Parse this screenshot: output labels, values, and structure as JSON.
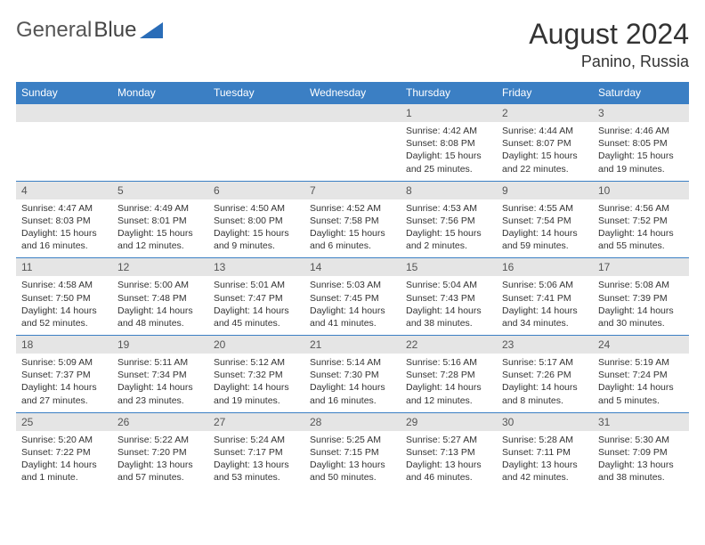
{
  "brand": {
    "name1": "General",
    "name2": "Blue"
  },
  "title": {
    "month_year": "August 2024",
    "location": "Panino, Russia"
  },
  "colors": {
    "header_bg": "#3b7fc4",
    "header_text": "#ffffff",
    "daynum_bg": "#e5e5e5",
    "rule": "#3b7fc4",
    "text": "#333333",
    "logo_accent": "#2a6db8"
  },
  "weekdays": [
    "Sunday",
    "Monday",
    "Tuesday",
    "Wednesday",
    "Thursday",
    "Friday",
    "Saturday"
  ],
  "weeks": [
    [
      null,
      null,
      null,
      null,
      {
        "n": "1",
        "sr": "Sunrise: 4:42 AM",
        "ss": "Sunset: 8:08 PM",
        "dl": "Daylight: 15 hours and 25 minutes."
      },
      {
        "n": "2",
        "sr": "Sunrise: 4:44 AM",
        "ss": "Sunset: 8:07 PM",
        "dl": "Daylight: 15 hours and 22 minutes."
      },
      {
        "n": "3",
        "sr": "Sunrise: 4:46 AM",
        "ss": "Sunset: 8:05 PM",
        "dl": "Daylight: 15 hours and 19 minutes."
      }
    ],
    [
      {
        "n": "4",
        "sr": "Sunrise: 4:47 AM",
        "ss": "Sunset: 8:03 PM",
        "dl": "Daylight: 15 hours and 16 minutes."
      },
      {
        "n": "5",
        "sr": "Sunrise: 4:49 AM",
        "ss": "Sunset: 8:01 PM",
        "dl": "Daylight: 15 hours and 12 minutes."
      },
      {
        "n": "6",
        "sr": "Sunrise: 4:50 AM",
        "ss": "Sunset: 8:00 PM",
        "dl": "Daylight: 15 hours and 9 minutes."
      },
      {
        "n": "7",
        "sr": "Sunrise: 4:52 AM",
        "ss": "Sunset: 7:58 PM",
        "dl": "Daylight: 15 hours and 6 minutes."
      },
      {
        "n": "8",
        "sr": "Sunrise: 4:53 AM",
        "ss": "Sunset: 7:56 PM",
        "dl": "Daylight: 15 hours and 2 minutes."
      },
      {
        "n": "9",
        "sr": "Sunrise: 4:55 AM",
        "ss": "Sunset: 7:54 PM",
        "dl": "Daylight: 14 hours and 59 minutes."
      },
      {
        "n": "10",
        "sr": "Sunrise: 4:56 AM",
        "ss": "Sunset: 7:52 PM",
        "dl": "Daylight: 14 hours and 55 minutes."
      }
    ],
    [
      {
        "n": "11",
        "sr": "Sunrise: 4:58 AM",
        "ss": "Sunset: 7:50 PM",
        "dl": "Daylight: 14 hours and 52 minutes."
      },
      {
        "n": "12",
        "sr": "Sunrise: 5:00 AM",
        "ss": "Sunset: 7:48 PM",
        "dl": "Daylight: 14 hours and 48 minutes."
      },
      {
        "n": "13",
        "sr": "Sunrise: 5:01 AM",
        "ss": "Sunset: 7:47 PM",
        "dl": "Daylight: 14 hours and 45 minutes."
      },
      {
        "n": "14",
        "sr": "Sunrise: 5:03 AM",
        "ss": "Sunset: 7:45 PM",
        "dl": "Daylight: 14 hours and 41 minutes."
      },
      {
        "n": "15",
        "sr": "Sunrise: 5:04 AM",
        "ss": "Sunset: 7:43 PM",
        "dl": "Daylight: 14 hours and 38 minutes."
      },
      {
        "n": "16",
        "sr": "Sunrise: 5:06 AM",
        "ss": "Sunset: 7:41 PM",
        "dl": "Daylight: 14 hours and 34 minutes."
      },
      {
        "n": "17",
        "sr": "Sunrise: 5:08 AM",
        "ss": "Sunset: 7:39 PM",
        "dl": "Daylight: 14 hours and 30 minutes."
      }
    ],
    [
      {
        "n": "18",
        "sr": "Sunrise: 5:09 AM",
        "ss": "Sunset: 7:37 PM",
        "dl": "Daylight: 14 hours and 27 minutes."
      },
      {
        "n": "19",
        "sr": "Sunrise: 5:11 AM",
        "ss": "Sunset: 7:34 PM",
        "dl": "Daylight: 14 hours and 23 minutes."
      },
      {
        "n": "20",
        "sr": "Sunrise: 5:12 AM",
        "ss": "Sunset: 7:32 PM",
        "dl": "Daylight: 14 hours and 19 minutes."
      },
      {
        "n": "21",
        "sr": "Sunrise: 5:14 AM",
        "ss": "Sunset: 7:30 PM",
        "dl": "Daylight: 14 hours and 16 minutes."
      },
      {
        "n": "22",
        "sr": "Sunrise: 5:16 AM",
        "ss": "Sunset: 7:28 PM",
        "dl": "Daylight: 14 hours and 12 minutes."
      },
      {
        "n": "23",
        "sr": "Sunrise: 5:17 AM",
        "ss": "Sunset: 7:26 PM",
        "dl": "Daylight: 14 hours and 8 minutes."
      },
      {
        "n": "24",
        "sr": "Sunrise: 5:19 AM",
        "ss": "Sunset: 7:24 PM",
        "dl": "Daylight: 14 hours and 5 minutes."
      }
    ],
    [
      {
        "n": "25",
        "sr": "Sunrise: 5:20 AM",
        "ss": "Sunset: 7:22 PM",
        "dl": "Daylight: 14 hours and 1 minute."
      },
      {
        "n": "26",
        "sr": "Sunrise: 5:22 AM",
        "ss": "Sunset: 7:20 PM",
        "dl": "Daylight: 13 hours and 57 minutes."
      },
      {
        "n": "27",
        "sr": "Sunrise: 5:24 AM",
        "ss": "Sunset: 7:17 PM",
        "dl": "Daylight: 13 hours and 53 minutes."
      },
      {
        "n": "28",
        "sr": "Sunrise: 5:25 AM",
        "ss": "Sunset: 7:15 PM",
        "dl": "Daylight: 13 hours and 50 minutes."
      },
      {
        "n": "29",
        "sr": "Sunrise: 5:27 AM",
        "ss": "Sunset: 7:13 PM",
        "dl": "Daylight: 13 hours and 46 minutes."
      },
      {
        "n": "30",
        "sr": "Sunrise: 5:28 AM",
        "ss": "Sunset: 7:11 PM",
        "dl": "Daylight: 13 hours and 42 minutes."
      },
      {
        "n": "31",
        "sr": "Sunrise: 5:30 AM",
        "ss": "Sunset: 7:09 PM",
        "dl": "Daylight: 13 hours and 38 minutes."
      }
    ]
  ]
}
